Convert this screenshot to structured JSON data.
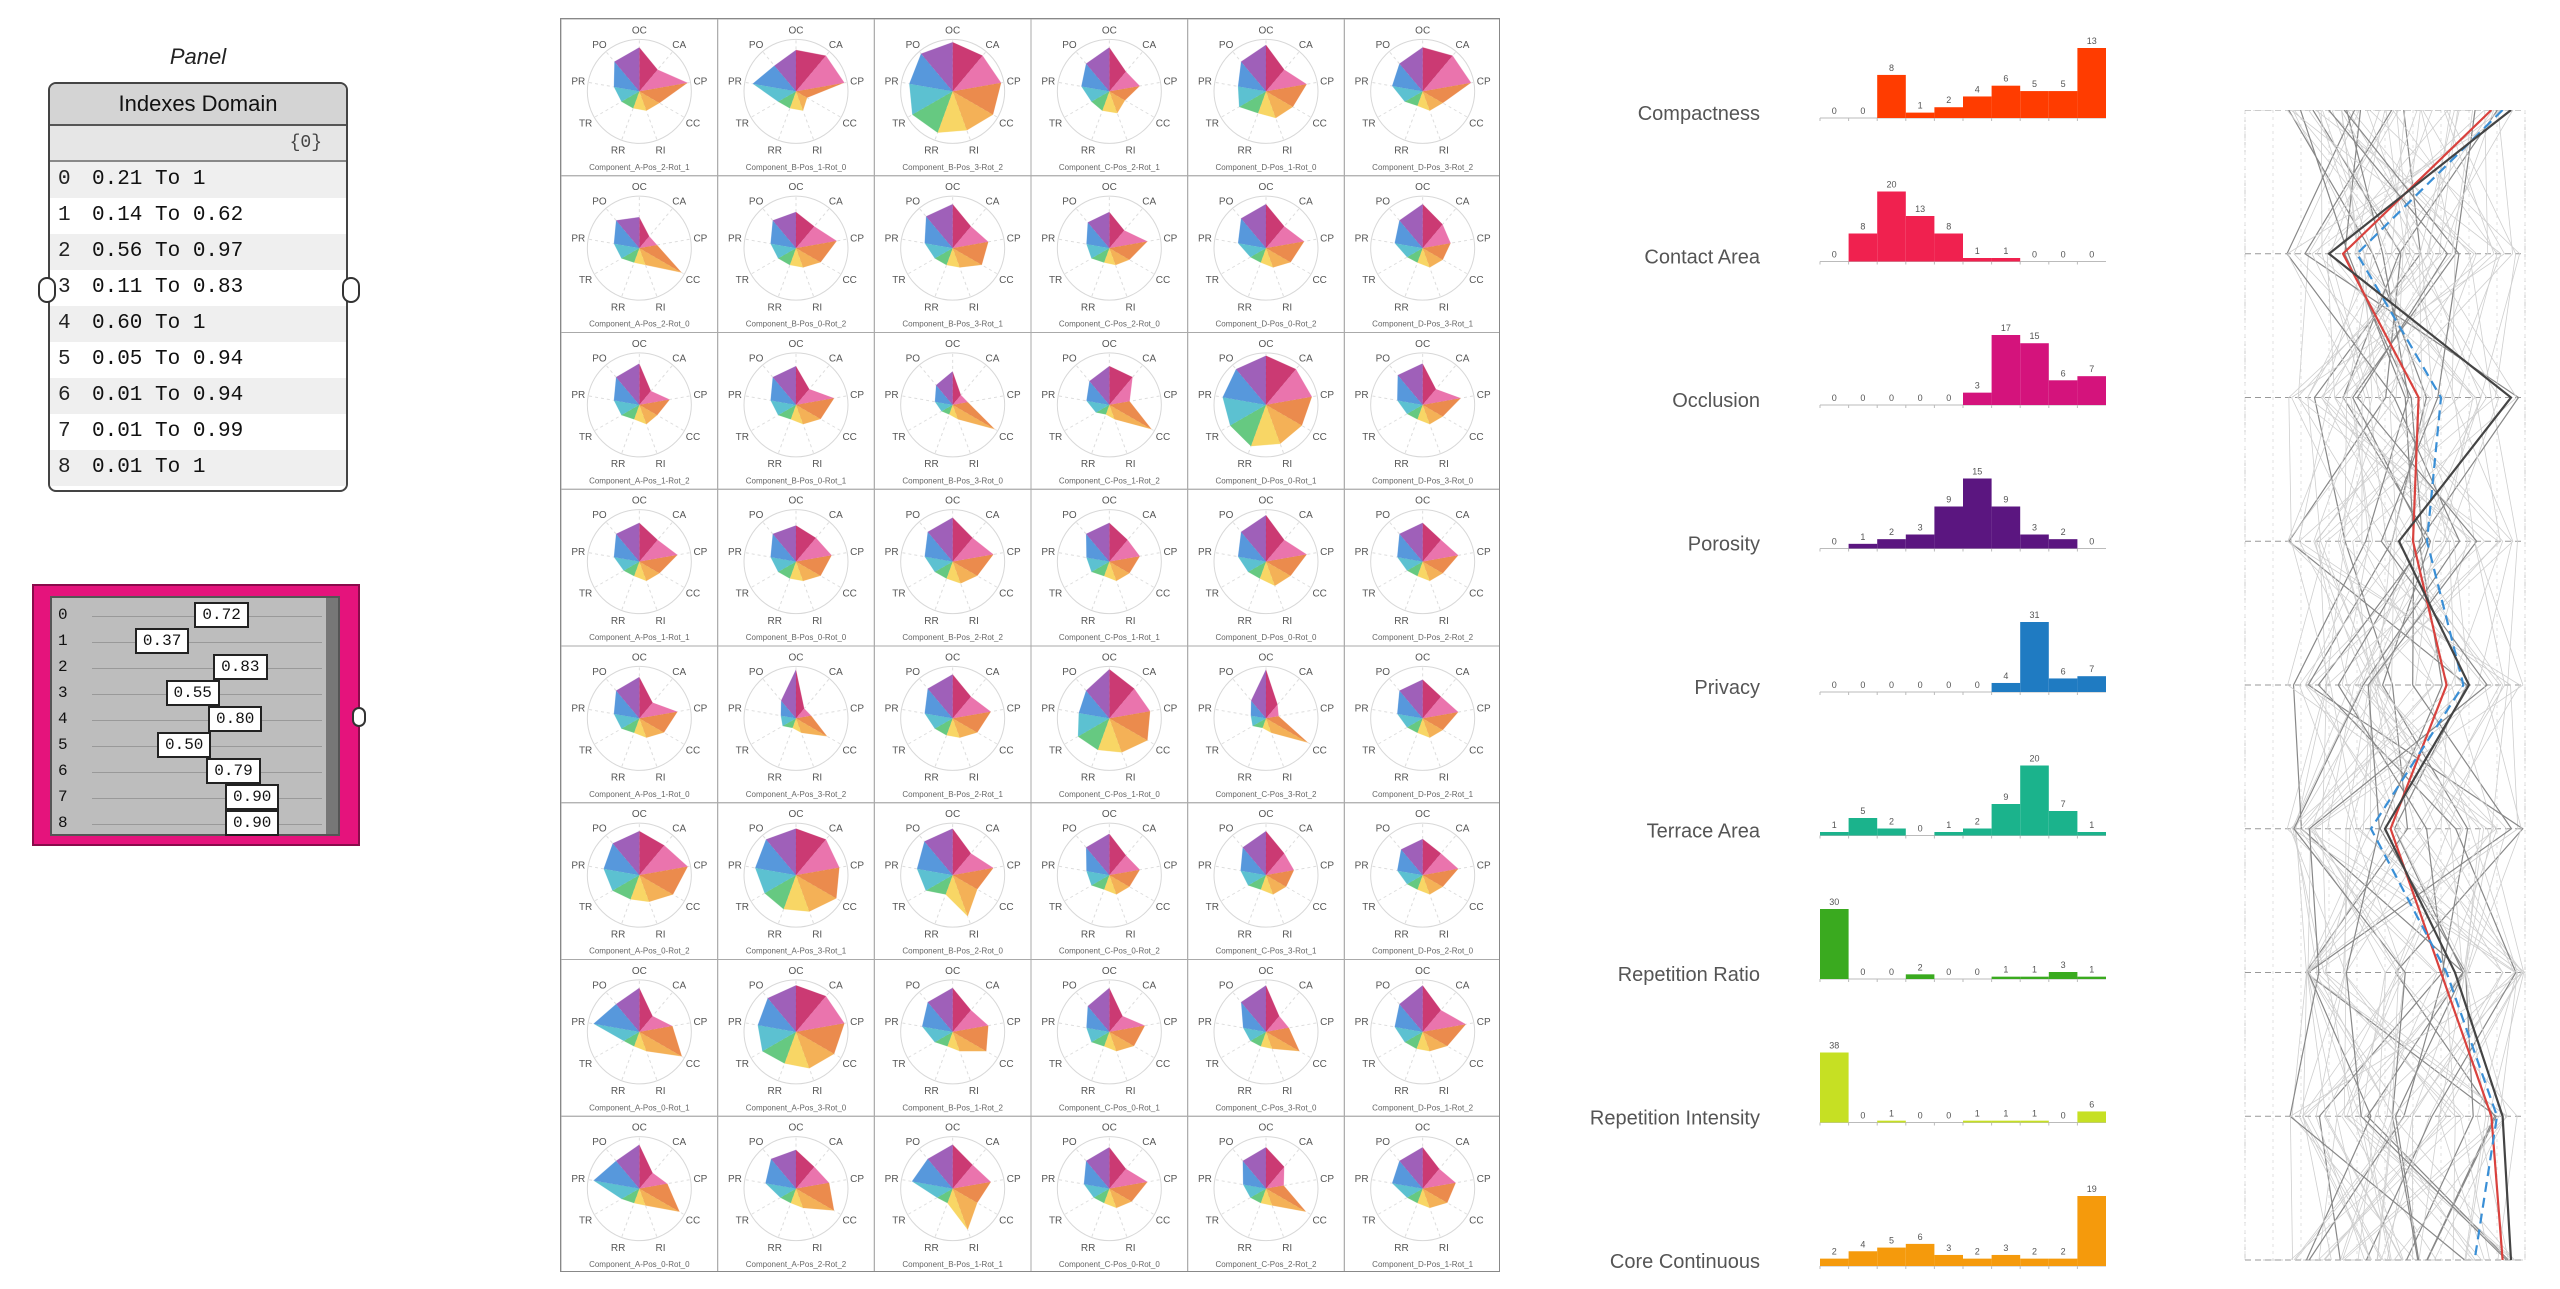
{
  "panel": {
    "caption": "Panel",
    "title": "Indexes Domain",
    "path": "{0}",
    "rows": [
      {
        "i": "0",
        "v": "0.21 To 1"
      },
      {
        "i": "1",
        "v": "0.14 To 0.62"
      },
      {
        "i": "2",
        "v": "0.56 To 0.97"
      },
      {
        "i": "3",
        "v": "0.11 To 0.83"
      },
      {
        "i": "4",
        "v": "0.60 To 1"
      },
      {
        "i": "5",
        "v": "0.05 To 0.94"
      },
      {
        "i": "6",
        "v": "0.01 To 0.94"
      },
      {
        "i": "7",
        "v": "0.01 To 0.99"
      },
      {
        "i": "8",
        "v": "0.01 To 1"
      }
    ]
  },
  "slider": {
    "rows": [
      {
        "i": "0",
        "v": "0.72",
        "value": 0.72
      },
      {
        "i": "1",
        "v": "0.37",
        "value": 0.37
      },
      {
        "i": "2",
        "v": "0.83",
        "value": 0.83
      },
      {
        "i": "3",
        "v": "0.55",
        "value": 0.55
      },
      {
        "i": "4",
        "v": "0.80",
        "value": 0.8
      },
      {
        "i": "5",
        "v": "0.50",
        "value": 0.5
      },
      {
        "i": "6",
        "v": "0.79",
        "value": 0.79
      },
      {
        "i": "7",
        "v": "0.90",
        "value": 0.9
      },
      {
        "i": "8",
        "v": "0.90",
        "value": 0.9
      }
    ]
  },
  "colors": {
    "panel_pink": "#e5137c",
    "pc_red": "#d9423e",
    "pc_blue": "#3a8fd6"
  },
  "chart_data": [
    {
      "type": "radar",
      "title": "",
      "axes": [
        "OC",
        "CA",
        "CP",
        "CC",
        "RI",
        "RR",
        "TR",
        "PR",
        "PO"
      ],
      "labels": [
        "Component_A-Pos_2-Rot_1",
        "Component_B-Pos_1-Rot_0",
        "Component_B-Pos_3-Rot_2",
        "Component_C-Pos_2-Rot_1",
        "Component_D-Pos_1-Rot_0",
        "Component_D-Pos_3-Rot_2",
        "Component_A-Pos_2-Rot_0",
        "Component_B-Pos_0-Rot_2",
        "Component_B-Pos_3-Rot_1",
        "Component_C-Pos_2-Rot_0",
        "Component_D-Pos_0-Rot_2",
        "Component_D-Pos_3-Rot_1",
        "Component_A-Pos_1-Rot_2",
        "Component_B-Pos_0-Rot_1",
        "Component_B-Pos_3-Rot_0",
        "Component_C-Pos_1-Rot_2",
        "Component_D-Pos_0-Rot_1",
        "Component_D-Pos_3-Rot_0",
        "Component_A-Pos_1-Rot_1",
        "Component_B-Pos_0-Rot_0",
        "Component_B-Pos_2-Rot_2",
        "Component_C-Pos_1-Rot_1",
        "Component_D-Pos_0-Rot_0",
        "Component_D-Pos_2-Rot_2",
        "Component_A-Pos_1-Rot_0",
        "Component_A-Pos_3-Rot_2",
        "Component_B-Pos_2-Rot_1",
        "Component_C-Pos_1-Rot_0",
        "Component_C-Pos_3-Rot_2",
        "Component_D-Pos_2-Rot_1",
        "Component_A-Pos_0-Rot_2",
        "Component_A-Pos_3-Rot_1",
        "Component_B-Pos_2-Rot_0",
        "Component_C-Pos_0-Rot_2",
        "Component_C-Pos_3-Rot_1",
        "Component_D-Pos_2-Rot_0",
        "Component_A-Pos_0-Rot_1",
        "Component_A-Pos_3-Rot_0",
        "Component_B-Pos_1-Rot_2",
        "Component_C-Pos_0-Rot_1",
        "Component_C-Pos_3-Rot_0",
        "Component_D-Pos_1-Rot_2",
        "Component_A-Pos_0-Rot_0",
        "Component_A-Pos_2-Rot_2",
        "Component_B-Pos_1-Rot_1",
        "Component_C-Pos_0-Rot_0",
        "Component_C-Pos_2-Rot_2",
        "Component_D-Pos_1-Rot_1"
      ],
      "values": [
        [
          0.85,
          0.55,
          0.95,
          0.45,
          0.4,
          0.35,
          0.4,
          0.5,
          0.75
        ],
        [
          0.8,
          0.9,
          0.95,
          0.25,
          0.4,
          0.35,
          0.4,
          0.85,
          0.65
        ],
        [
          0.95,
          0.9,
          0.95,
          0.9,
          0.8,
          0.85,
          0.9,
          0.85,
          0.95
        ],
        [
          0.85,
          0.5,
          0.6,
          0.35,
          0.45,
          0.4,
          0.4,
          0.55,
          0.7
        ],
        [
          0.9,
          0.55,
          0.8,
          0.6,
          0.55,
          0.45,
          0.6,
          0.55,
          0.75
        ],
        [
          0.85,
          0.9,
          0.95,
          0.45,
          0.4,
          0.3,
          0.4,
          0.6,
          0.7
        ],
        [
          0.6,
          0.3,
          0.35,
          0.95,
          0.35,
          0.3,
          0.4,
          0.5,
          0.7
        ],
        [
          0.7,
          0.55,
          0.8,
          0.55,
          0.4,
          0.35,
          0.4,
          0.5,
          0.7
        ],
        [
          0.85,
          0.55,
          0.7,
          0.65,
          0.4,
          0.35,
          0.4,
          0.55,
          0.8
        ],
        [
          0.7,
          0.45,
          0.75,
          0.45,
          0.35,
          0.3,
          0.4,
          0.45,
          0.65
        ],
        [
          0.85,
          0.55,
          0.75,
          0.55,
          0.4,
          0.3,
          0.35,
          0.55,
          0.75
        ],
        [
          0.85,
          0.6,
          0.55,
          0.45,
          0.4,
          0.3,
          0.35,
          0.55,
          0.7
        ],
        [
          0.8,
          0.35,
          0.6,
          0.4,
          0.4,
          0.3,
          0.4,
          0.5,
          0.7
        ],
        [
          0.75,
          0.4,
          0.75,
          0.55,
          0.4,
          0.3,
          0.4,
          0.5,
          0.7
        ],
        [
          0.65,
          0.25,
          0.3,
          0.95,
          0.3,
          0.2,
          0.25,
          0.35,
          0.5
        ],
        [
          0.75,
          0.7,
          0.4,
          0.95,
          0.3,
          0.2,
          0.3,
          0.45,
          0.6
        ],
        [
          0.95,
          0.9,
          0.9,
          0.8,
          0.8,
          0.85,
          0.8,
          0.85,
          0.9
        ],
        [
          0.8,
          0.4,
          0.75,
          0.45,
          0.4,
          0.3,
          0.35,
          0.5,
          0.75
        ],
        [
          0.75,
          0.55,
          0.75,
          0.45,
          0.4,
          0.3,
          0.35,
          0.5,
          0.7
        ],
        [
          0.7,
          0.6,
          0.7,
          0.55,
          0.4,
          0.35,
          0.4,
          0.5,
          0.7
        ],
        [
          0.85,
          0.6,
          0.8,
          0.55,
          0.45,
          0.35,
          0.4,
          0.55,
          0.75
        ],
        [
          0.75,
          0.55,
          0.6,
          0.45,
          0.4,
          0.3,
          0.4,
          0.45,
          0.7
        ],
        [
          0.9,
          0.55,
          0.8,
          0.55,
          0.5,
          0.35,
          0.4,
          0.55,
          0.75
        ],
        [
          0.75,
          0.55,
          0.7,
          0.45,
          0.4,
          0.3,
          0.35,
          0.5,
          0.7
        ],
        [
          0.8,
          0.4,
          0.75,
          0.55,
          0.4,
          0.3,
          0.4,
          0.5,
          0.7
        ],
        [
          0.95,
          0.25,
          0.3,
          0.7,
          0.3,
          0.2,
          0.3,
          0.3,
          0.45
        ],
        [
          0.85,
          0.55,
          0.75,
          0.55,
          0.4,
          0.35,
          0.4,
          0.55,
          0.75
        ],
        [
          0.95,
          0.75,
          0.8,
          0.85,
          0.7,
          0.65,
          0.7,
          0.6,
          0.7
        ],
        [
          0.95,
          0.35,
          0.25,
          0.95,
          0.3,
          0.2,
          0.3,
          0.3,
          0.45
        ],
        [
          0.75,
          0.55,
          0.7,
          0.45,
          0.4,
          0.3,
          0.35,
          0.5,
          0.7
        ],
        [
          0.85,
          0.75,
          0.95,
          0.75,
          0.55,
          0.5,
          0.6,
          0.7,
          0.8
        ],
        [
          0.9,
          0.9,
          0.85,
          0.9,
          0.75,
          0.7,
          0.7,
          0.8,
          0.9
        ],
        [
          0.9,
          0.55,
          0.8,
          0.55,
          0.85,
          0.4,
          0.6,
          0.7,
          0.85
        ],
        [
          0.8,
          0.5,
          0.6,
          0.45,
          0.4,
          0.3,
          0.4,
          0.45,
          0.7
        ],
        [
          0.85,
          0.55,
          0.55,
          0.45,
          0.4,
          0.3,
          0.4,
          0.5,
          0.7
        ],
        [
          0.7,
          0.55,
          0.7,
          0.45,
          0.4,
          0.3,
          0.35,
          0.5,
          0.65
        ],
        [
          0.85,
          0.4,
          0.65,
          0.95,
          0.4,
          0.3,
          0.35,
          0.9,
          0.7
        ],
        [
          0.9,
          0.9,
          0.95,
          0.85,
          0.75,
          0.65,
          0.75,
          0.75,
          0.85
        ],
        [
          0.85,
          0.55,
          0.7,
          0.75,
          0.4,
          0.3,
          0.4,
          0.6,
          0.75
        ],
        [
          0.85,
          0.4,
          0.7,
          0.55,
          0.4,
          0.3,
          0.4,
          0.45,
          0.65
        ],
        [
          0.9,
          0.4,
          0.45,
          0.75,
          0.35,
          0.3,
          0.35,
          0.45,
          0.75
        ],
        [
          0.9,
          0.55,
          0.85,
          0.55,
          0.4,
          0.35,
          0.4,
          0.55,
          0.7
        ],
        [
          0.85,
          0.4,
          0.55,
          0.9,
          0.35,
          0.3,
          0.4,
          0.9,
          0.7
        ],
        [
          0.75,
          0.55,
          0.65,
          0.85,
          0.4,
          0.3,
          0.35,
          0.6,
          0.75
        ],
        [
          0.85,
          0.6,
          0.75,
          0.55,
          0.85,
          0.3,
          0.35,
          0.8,
          0.75
        ],
        [
          0.8,
          0.5,
          0.75,
          0.5,
          0.4,
          0.3,
          0.35,
          0.5,
          0.7
        ],
        [
          0.8,
          0.55,
          0.35,
          0.9,
          0.35,
          0.3,
          0.35,
          0.45,
          0.7
        ],
        [
          0.8,
          0.5,
          0.65,
          0.55,
          0.4,
          0.3,
          0.35,
          0.6,
          0.7
        ]
      ]
    },
    {
      "type": "bar",
      "title": "Compactness",
      "color": "#ff3c00",
      "values": [
        0,
        0,
        8,
        1,
        2,
        4,
        6,
        5,
        5,
        13
      ],
      "labels": [
        "0",
        "0",
        "8",
        "1",
        "2",
        "4",
        "6",
        "5",
        "5",
        "13"
      ],
      "ylim": [
        0,
        13
      ]
    },
    {
      "type": "bar",
      "title": "Contact Area",
      "color": "#f0214f",
      "values": [
        0,
        8,
        20,
        13,
        8,
        1,
        1,
        0,
        0,
        0
      ],
      "labels": [
        "0",
        "8",
        "20",
        "13",
        "8",
        "1",
        "1",
        "0",
        "0",
        "0"
      ],
      "ylim": [
        0,
        20
      ]
    },
    {
      "type": "bar",
      "title": "Occlusion",
      "color": "#d4137c",
      "values": [
        0,
        0,
        0,
        0,
        0,
        3,
        17,
        15,
        6,
        7
      ],
      "labels": [
        "0",
        "0",
        "0",
        "0",
        "0",
        "3",
        "17",
        "15",
        "6",
        "7"
      ],
      "ylim": [
        0,
        17
      ]
    },
    {
      "type": "bar",
      "title": "Porosity",
      "color": "#5b1680",
      "values": [
        0,
        1,
        2,
        3,
        9,
        15,
        9,
        3,
        2,
        0
      ],
      "labels": [
        "0",
        "1",
        "2",
        "3",
        "9",
        "15",
        "9",
        "3",
        "2",
        "0"
      ],
      "ylim": [
        0,
        15
      ]
    },
    {
      "type": "bar",
      "title": "Privacy",
      "color": "#1f7bc2",
      "values": [
        0,
        0,
        0,
        0,
        0,
        0,
        4,
        31,
        6,
        7
      ],
      "labels": [
        "0",
        "0",
        "0",
        "0",
        "0",
        "0",
        "4",
        "31",
        "6",
        "7"
      ],
      "ylim": [
        0,
        31
      ]
    },
    {
      "type": "bar",
      "title": "Terrace Area",
      "color": "#1bb38c",
      "values": [
        1,
        5,
        2,
        0,
        1,
        2,
        9,
        20,
        7,
        1
      ],
      "labels": [
        "1",
        "5",
        "2",
        "0",
        "1",
        "2",
        "9",
        "20",
        "7",
        "1"
      ],
      "ylim": [
        0,
        20
      ]
    },
    {
      "type": "bar",
      "title": "Repetition Ratio",
      "color": "#3aaa1f",
      "values": [
        30,
        0,
        0,
        2,
        0,
        0,
        1,
        1,
        3,
        1
      ],
      "labels": [
        "30",
        "0",
        "0",
        "2",
        "0",
        "0",
        "1",
        "1",
        "3",
        "1"
      ],
      "ylim": [
        0,
        30
      ]
    },
    {
      "type": "bar",
      "title": "Repetition Intensity",
      "color": "#c6e023",
      "values": [
        38,
        0,
        1,
        0,
        0,
        1,
        1,
        1,
        0,
        6
      ],
      "labels": [
        "38",
        "0",
        "1",
        "0",
        "0",
        "1",
        "1",
        "1",
        "0",
        "6"
      ],
      "ylim": [
        0,
        38
      ]
    },
    {
      "type": "bar",
      "title": "Core Continuous",
      "color": "#f59a0c",
      "values": [
        2,
        4,
        5,
        6,
        3,
        2,
        3,
        2,
        2,
        19
      ],
      "labels": [
        "2",
        "4",
        "5",
        "6",
        "3",
        "2",
        "3",
        "2",
        "2",
        "19"
      ],
      "ylim": [
        0,
        19
      ]
    },
    {
      "type": "parallel_coordinates",
      "title": "",
      "axes": [
        "Compactness",
        "Contact Area",
        "Occlusion",
        "Porosity",
        "Privacy",
        "Terrace Area",
        "Repetition Ratio",
        "Repetition Intensity",
        "Core Continuous"
      ],
      "xlim": [
        0,
        1
      ],
      "highlight": [
        {
          "name": "red",
          "values": [
            0.88,
            0.35,
            0.62,
            0.6,
            0.72,
            0.52,
            0.7,
            0.88,
            0.92
          ]
        },
        {
          "name": "blue-dashed",
          "values": [
            0.92,
            0.4,
            0.7,
            0.65,
            0.78,
            0.45,
            0.72,
            0.9,
            0.82
          ]
        },
        {
          "name": "dark",
          "values": [
            0.95,
            0.3,
            0.95,
            0.55,
            0.8,
            0.5,
            0.75,
            0.92,
            0.95
          ]
        }
      ]
    }
  ]
}
